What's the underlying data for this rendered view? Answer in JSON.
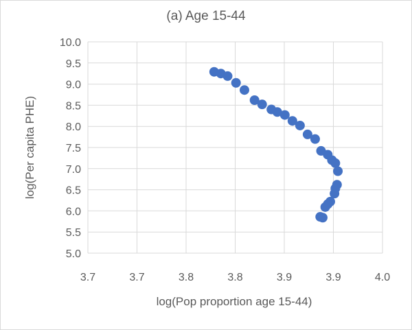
{
  "chart_data": {
    "type": "scatter",
    "title": "(a) Age 15-44",
    "xlabel": "log(Pop proportion age 15-44)",
    "ylabel": "log(Per capita PHE)",
    "xlim": [
      3.65,
      4.0
    ],
    "ylim": [
      5.0,
      10.0
    ],
    "x_tick_labels": [
      "3.7",
      "3.7",
      "3.8",
      "3.8",
      "3.9",
      "3.9",
      "4.0"
    ],
    "y_tick_labels": [
      "5.0",
      "5.5",
      "6.0",
      "6.5",
      "7.0",
      "7.5",
      "8.0",
      "8.5",
      "9.0",
      "9.5",
      "10.0"
    ],
    "grid": true,
    "marker_color": "#4472c4",
    "series": [
      {
        "points": [
          {
            "x": 3.8,
            "y": 9.29
          },
          {
            "x": 3.808,
            "y": 9.25
          },
          {
            "x": 3.816,
            "y": 9.19
          },
          {
            "x": 3.826,
            "y": 9.03
          },
          {
            "x": 3.836,
            "y": 8.86
          },
          {
            "x": 3.848,
            "y": 8.62
          },
          {
            "x": 3.857,
            "y": 8.52
          },
          {
            "x": 3.868,
            "y": 8.4
          },
          {
            "x": 3.875,
            "y": 8.34
          },
          {
            "x": 3.884,
            "y": 8.27
          },
          {
            "x": 3.893,
            "y": 8.13
          },
          {
            "x": 3.902,
            "y": 8.02
          },
          {
            "x": 3.911,
            "y": 7.81
          },
          {
            "x": 3.92,
            "y": 7.7
          },
          {
            "x": 3.927,
            "y": 7.42
          },
          {
            "x": 3.935,
            "y": 7.33
          },
          {
            "x": 3.94,
            "y": 7.2
          },
          {
            "x": 3.944,
            "y": 7.13
          },
          {
            "x": 3.947,
            "y": 6.94
          },
          {
            "x": 3.946,
            "y": 6.62
          },
          {
            "x": 3.944,
            "y": 6.53
          },
          {
            "x": 3.943,
            "y": 6.41
          },
          {
            "x": 3.938,
            "y": 6.22
          },
          {
            "x": 3.935,
            "y": 6.16
          },
          {
            "x": 3.932,
            "y": 6.09
          },
          {
            "x": 3.929,
            "y": 5.84
          },
          {
            "x": 3.926,
            "y": 5.86
          }
        ]
      }
    ]
  }
}
